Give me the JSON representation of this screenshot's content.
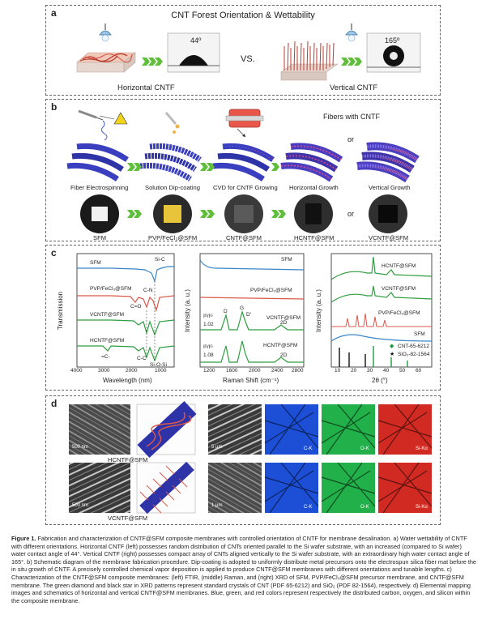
{
  "panel_a": {
    "label": "a",
    "title": "CNT Forest Orientation & Wettability",
    "left_angle": "44º",
    "right_angle": "165º",
    "vs": "VS.",
    "left_caption": "Horizontal CNTF",
    "right_caption": "Vertical CNTF"
  },
  "panel_b": {
    "label": "b",
    "fibers_title": "Fibers with CNTF",
    "or_top": "or",
    "or_bottom": "or",
    "steps": [
      "Fiber Electrospinning",
      "Solution Dip-coating",
      "CVD for CNTF Growing",
      "Horizontal Growth",
      "Vertical Growth"
    ],
    "samples": [
      "SFM",
      "PVP/FeCl₃@SFM",
      "CNTF@SFM",
      "HCNTF@SFM",
      "VCNTF@SFM"
    ]
  },
  "panel_c": {
    "label": "c",
    "ftir": {
      "ylabel": "Transmission",
      "xlabel": "Wavelength (nm)",
      "xticks": [
        "4000",
        "3500",
        "3000",
        "2500",
        "2000",
        "1500",
        "1000",
        "500"
      ],
      "curve_labels": [
        "SFM",
        "PVP/FeCl₃@SFM",
        "VCNTF@SFM",
        "HCNTF@SFM"
      ],
      "peak_labels": [
        "Si-C",
        "C-N",
        "C=O",
        "C-C",
        "Si-O-Si",
        "=C-"
      ]
    },
    "raman": {
      "ylabel": "Intensity (a. u.)",
      "xlabel": "Raman Shift (cm⁻¹)",
      "xticks": [
        "1200",
        "1600",
        "2000",
        "2400",
        "2800"
      ],
      "curve_labels": [
        "SFM",
        "PVP/FeCl₃@SFM",
        "VCNTF@SFM",
        "HCNTF@SFM"
      ],
      "ratio_top_label": "Iᴰ/Iᴳ",
      "ratio_top": "1.02",
      "ratio_bottom_label": "Iᴰ/Iᴳ",
      "ratio_bottom": "1.08",
      "band_labels": [
        "D",
        "G",
        "D'",
        "2D"
      ]
    },
    "xrd": {
      "ylabel": "Intensity (a. u.)",
      "xlabel": "2θ (°)",
      "xticks": [
        "10",
        "20",
        "30",
        "40",
        "50",
        "60"
      ],
      "curve_labels": [
        "HCNTF@SFM",
        "VCNTF@SFM",
        "PVP/FeCl₃@SFM",
        "SFM"
      ],
      "legend": [
        "CNT-65-6212",
        "SiO₂-82-1564"
      ],
      "colors": {
        "cnt": "#1f9a3c",
        "sio2": "#111111"
      }
    },
    "colors": {
      "blue": "#3a86c8",
      "red": "#d9584a",
      "green": "#2e9e3f",
      "black": "#111111"
    }
  },
  "panel_d": {
    "label": "d",
    "row1_caption": "HCNTF@SFM",
    "row2_caption": "VCNTF@SFM",
    "scale_500": "500 nm",
    "scale_5": "5 μm",
    "scale_1": "1 μm",
    "maps": [
      "C-K",
      "O-K",
      "Si-Kα"
    ],
    "map_colors": [
      "#1c4fd6",
      "#22b04a",
      "#d12a22"
    ]
  },
  "caption": {
    "lead": "Figure 1.",
    "text": " Fabrication and characterization of CNTF@SFM composite membranes with controlled orientation of CNTF for membrane desalination. a) Water wettability of CNTF with different orientations. Horizontal CNTF (left) possesses random distribution of CNTs oriented parallel to the Si wafer substrate, with an increased (compared to Si wafer) water contact angle of 44°. Vertical CNTF (right) possesses compact array of CNTs aligned vertically to the Si wafer substrate, with an extraordinary high water contact angle of 165°. b) Schematic diagram of the membrane fabrication procedure. Dip-coating is adopted to uniformly distribute metal precursors onto the electrospun silica fiber mat before the in situ growth of CNTF. A precisely controlled chemical vapor deposition is applied to produce CNTF@SFM membranes with different orientations and tunable lengths. c) Characterization of the CNTF@SFM composite membranes: (left) FTIR, (middle) Raman, and (right) XRD of SFM, PVP/FeCl₃@SFM precursor membrane, and CNTF@SFM membrane. The green diamond and black star in XRD patterns represent standard crystals of CNT (PDF 65-6212) and SiO₂ (PDF 82-1564), respectively. d) Elemental mapping images and schematics of horizontal and vertical CNTF@SFM membranes. Blue, green, and red colors represent respectively the distributed carbon, oxygen, and silicon within the composite membrane."
  }
}
